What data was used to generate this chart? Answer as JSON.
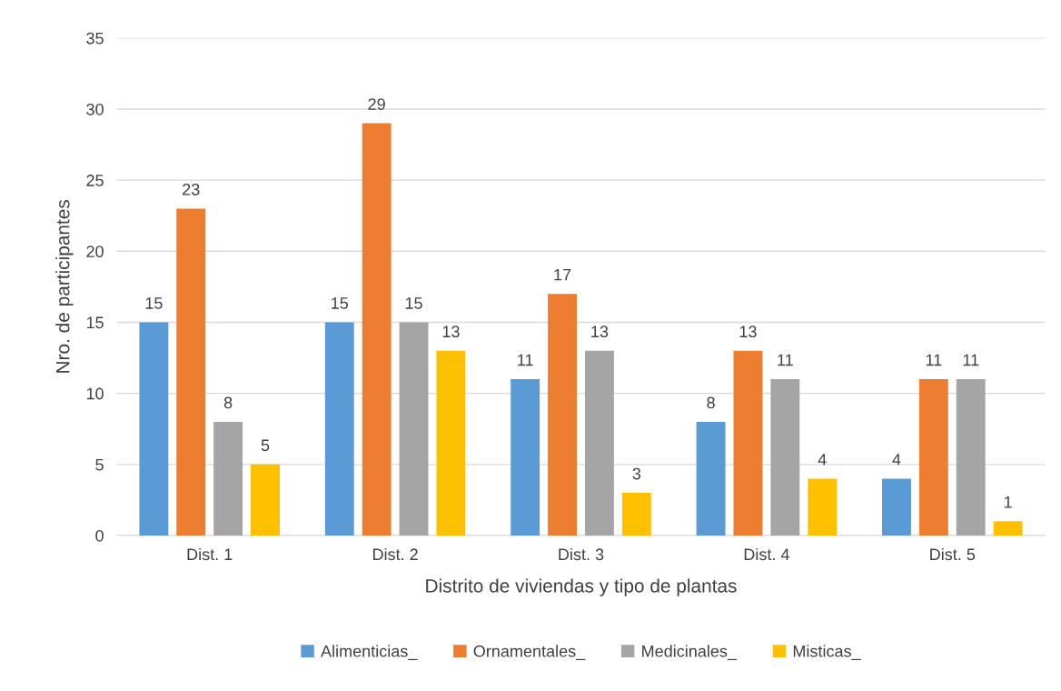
{
  "chart_data": {
    "type": "bar",
    "xlabel": "Distrito de viviendas y tipo de plantas",
    "ylabel": "Nro. de participantes",
    "categories": [
      "Dist. 1",
      "Dist. 2",
      "Dist. 3",
      "Dist. 4",
      "Dist. 5"
    ],
    "series": [
      {
        "name": "Alimenticias_",
        "color": "#5b9bd5",
        "values": [
          15,
          15,
          11,
          8,
          4
        ]
      },
      {
        "name": "Ornamentales_",
        "color": "#ed7d31",
        "values": [
          23,
          29,
          17,
          13,
          11
        ]
      },
      {
        "name": "Medicinales_",
        "color": "#a5a5a5",
        "values": [
          8,
          15,
          13,
          11,
          11
        ]
      },
      {
        "name": "Misticas_",
        "color": "#ffc000",
        "values": [
          5,
          13,
          3,
          4,
          1
        ]
      }
    ],
    "ylim": [
      0,
      35
    ],
    "yticks": [
      0,
      5,
      10,
      15,
      20,
      25,
      30,
      35
    ],
    "grid": "y",
    "legend": "bottom",
    "data_labels": true
  }
}
